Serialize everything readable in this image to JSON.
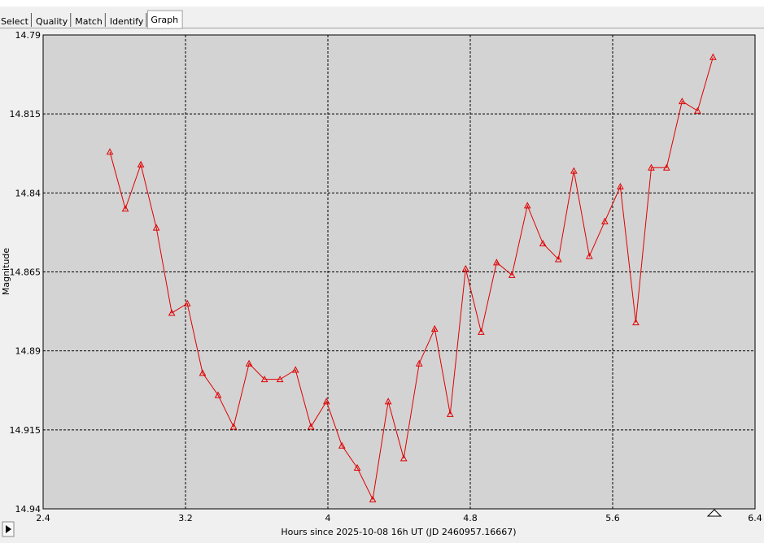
{
  "tabs": [
    "Select",
    "Quality",
    "Match",
    "Identify",
    "Graph"
  ],
  "active_tab": 4,
  "chart_data": {
    "type": "line",
    "x_label": "Hours since 2025-10-08 16h UT (JD 2460957.16667)",
    "y_label": "Magnitude",
    "x": [
      2.775,
      2.862,
      2.949,
      3.036,
      3.123,
      3.21,
      3.296,
      3.383,
      3.47,
      3.557,
      3.644,
      3.731,
      3.818,
      3.905,
      3.992,
      4.079,
      4.165,
      4.252,
      4.339,
      4.426,
      4.513,
      4.6,
      4.687,
      4.774,
      4.861,
      4.948,
      5.034,
      5.121,
      5.208,
      5.295,
      5.382,
      5.469,
      5.556,
      5.643,
      5.73,
      5.817,
      5.903,
      5.99,
      6.077,
      6.164
    ],
    "series": [
      {
        "color": "#e00000",
        "values": [
          14.827,
          14.845,
          14.831,
          14.851,
          14.878,
          14.875,
          14.897,
          14.904,
          14.914,
          14.894,
          14.899,
          14.899,
          14.896,
          14.914,
          14.906,
          14.92,
          14.927,
          14.937,
          14.906,
          14.924,
          14.894,
          14.883,
          14.91,
          14.864,
          14.884,
          14.862,
          14.866,
          14.844,
          14.856,
          14.861,
          14.833,
          14.86,
          14.849,
          14.838,
          14.881,
          14.832,
          14.832,
          14.811,
          14.814,
          14.797
        ]
      }
    ],
    "xlim": [
      2.4,
      6.4
    ],
    "xticks": [
      2.4,
      3.2,
      4,
      4.8,
      5.6,
      6.4
    ],
    "ylim": [
      14.79,
      14.94
    ],
    "yticks": [
      14.79,
      14.815,
      14.84,
      14.865,
      14.89,
      14.915,
      14.94
    ],
    "y_inverted": true,
    "grid": true,
    "marker": "triangle"
  }
}
